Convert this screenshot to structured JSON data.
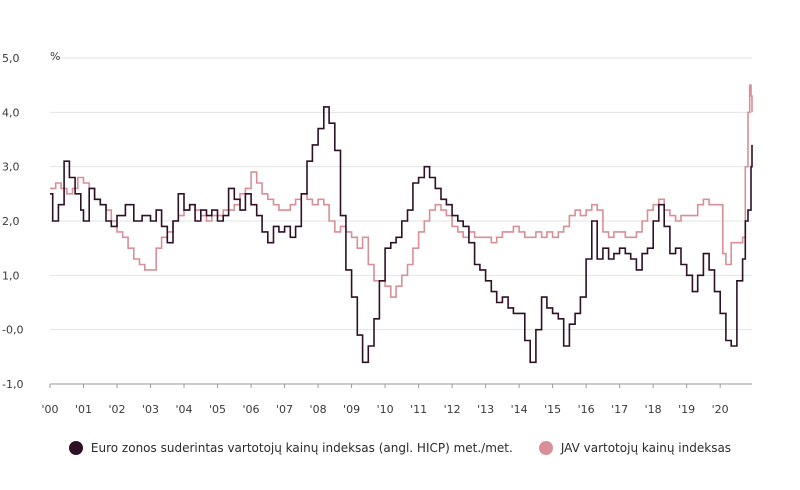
{
  "chart_data": {
    "type": "line",
    "title": "",
    "xlabel": "",
    "ylabel": "%",
    "ylim": [
      -1.0,
      5.0
    ],
    "xlim": [
      2000.0,
      2020.95
    ],
    "grid": "horizontal",
    "legend_position": "bottom",
    "y_ticks": [
      "-1,0",
      "-0,0",
      "1,0",
      "2,0",
      "3,0",
      "4,0",
      "5,0"
    ],
    "x_ticks": [
      "'00",
      "'01",
      "'02",
      "'03",
      "'04",
      "'05",
      "'06",
      "'07",
      "'08",
      "'09",
      "'10",
      "'11",
      "'12",
      "'13",
      "'14",
      "'15",
      "'16",
      "'17",
      "'18",
      "'19",
      "'20"
    ],
    "x_tick_years": [
      2000,
      2001,
      2002,
      2003,
      2004,
      2005,
      2006,
      2007,
      2008,
      2009,
      2010,
      2011,
      2012,
      2013,
      2014,
      2015,
      2016,
      2017,
      2018,
      2019,
      2020
    ],
    "series": [
      {
        "name": "Euro zonos suderintas vartotojų kainų indeksas (angl. HICP) met./met.",
        "color": "#2e1126",
        "points": [
          [
            2000.0,
            2.5
          ],
          [
            2000.08,
            2.0
          ],
          [
            2000.25,
            2.3
          ],
          [
            2000.42,
            3.1
          ],
          [
            2000.58,
            2.8
          ],
          [
            2000.75,
            2.5
          ],
          [
            2000.92,
            2.2
          ],
          [
            2001.0,
            2.0
          ],
          [
            2001.17,
            2.6
          ],
          [
            2001.33,
            2.4
          ],
          [
            2001.5,
            2.3
          ],
          [
            2001.67,
            2.0
          ],
          [
            2001.83,
            1.9
          ],
          [
            2002.0,
            2.1
          ],
          [
            2002.25,
            2.3
          ],
          [
            2002.5,
            2.0
          ],
          [
            2002.75,
            2.1
          ],
          [
            2003.0,
            2.0
          ],
          [
            2003.17,
            2.2
          ],
          [
            2003.33,
            1.9
          ],
          [
            2003.5,
            1.6
          ],
          [
            2003.67,
            2.0
          ],
          [
            2003.83,
            2.5
          ],
          [
            2004.0,
            2.2
          ],
          [
            2004.17,
            2.3
          ],
          [
            2004.33,
            2.0
          ],
          [
            2004.5,
            2.2
          ],
          [
            2004.67,
            2.1
          ],
          [
            2004.83,
            2.2
          ],
          [
            2005.0,
            2.0
          ],
          [
            2005.17,
            2.1
          ],
          [
            2005.33,
            2.6
          ],
          [
            2005.5,
            2.4
          ],
          [
            2005.67,
            2.2
          ],
          [
            2005.83,
            2.5
          ],
          [
            2006.0,
            2.3
          ],
          [
            2006.17,
            2.1
          ],
          [
            2006.33,
            1.8
          ],
          [
            2006.5,
            1.6
          ],
          [
            2006.67,
            1.9
          ],
          [
            2006.83,
            1.8
          ],
          [
            2007.0,
            1.9
          ],
          [
            2007.17,
            1.7
          ],
          [
            2007.33,
            1.9
          ],
          [
            2007.5,
            2.5
          ],
          [
            2007.67,
            3.1
          ],
          [
            2007.83,
            3.4
          ],
          [
            2008.0,
            3.7
          ],
          [
            2008.17,
            4.1
          ],
          [
            2008.33,
            3.8
          ],
          [
            2008.5,
            3.3
          ],
          [
            2008.67,
            2.1
          ],
          [
            2008.83,
            1.1
          ],
          [
            2009.0,
            0.6
          ],
          [
            2009.17,
            -0.1
          ],
          [
            2009.33,
            -0.6
          ],
          [
            2009.5,
            -0.3
          ],
          [
            2009.67,
            0.2
          ],
          [
            2009.83,
            0.9
          ],
          [
            2010.0,
            1.5
          ],
          [
            2010.17,
            1.6
          ],
          [
            2010.33,
            1.7
          ],
          [
            2010.5,
            2.0
          ],
          [
            2010.67,
            2.2
          ],
          [
            2010.83,
            2.7
          ],
          [
            2011.0,
            2.8
          ],
          [
            2011.17,
            3.0
          ],
          [
            2011.33,
            2.8
          ],
          [
            2011.5,
            2.6
          ],
          [
            2011.67,
            2.4
          ],
          [
            2011.83,
            2.3
          ],
          [
            2012.0,
            2.1
          ],
          [
            2012.17,
            2.0
          ],
          [
            2012.33,
            1.9
          ],
          [
            2012.5,
            1.6
          ],
          [
            2012.67,
            1.2
          ],
          [
            2012.83,
            1.1
          ],
          [
            2013.0,
            0.9
          ],
          [
            2013.17,
            0.7
          ],
          [
            2013.33,
            0.5
          ],
          [
            2013.5,
            0.6
          ],
          [
            2013.67,
            0.4
          ],
          [
            2013.83,
            0.3
          ],
          [
            2014.0,
            0.3
          ],
          [
            2014.17,
            -0.2
          ],
          [
            2014.33,
            -0.6
          ],
          [
            2014.5,
            0.0
          ],
          [
            2014.67,
            0.6
          ],
          [
            2014.83,
            0.4
          ],
          [
            2015.0,
            0.3
          ],
          [
            2015.17,
            0.2
          ],
          [
            2015.33,
            -0.3
          ],
          [
            2015.5,
            0.1
          ],
          [
            2015.67,
            0.3
          ],
          [
            2015.83,
            0.6
          ],
          [
            2016.0,
            1.3
          ],
          [
            2016.17,
            2.0
          ],
          [
            2016.33,
            1.3
          ],
          [
            2016.5,
            1.5
          ],
          [
            2016.67,
            1.3
          ],
          [
            2016.83,
            1.4
          ],
          [
            2017.0,
            1.5
          ],
          [
            2017.17,
            1.4
          ],
          [
            2017.33,
            1.3
          ],
          [
            2017.5,
            1.1
          ],
          [
            2017.67,
            1.4
          ],
          [
            2017.83,
            1.5
          ],
          [
            2018.0,
            2.0
          ],
          [
            2018.17,
            2.3
          ],
          [
            2018.33,
            1.9
          ],
          [
            2018.5,
            1.4
          ],
          [
            2018.67,
            1.5
          ],
          [
            2018.83,
            1.2
          ],
          [
            2019.0,
            1.0
          ],
          [
            2019.17,
            0.7
          ],
          [
            2019.33,
            1.0
          ],
          [
            2019.5,
            1.4
          ],
          [
            2019.67,
            1.1
          ],
          [
            2019.83,
            0.7
          ],
          [
            2020.0,
            0.3
          ],
          [
            2020.17,
            -0.2
          ],
          [
            2020.33,
            -0.3
          ],
          [
            2020.5,
            0.9
          ],
          [
            2020.67,
            1.3
          ],
          [
            2020.75,
            2.0
          ],
          [
            2020.83,
            2.2
          ],
          [
            2020.92,
            3.0
          ],
          [
            2020.95,
            3.4
          ]
        ]
      },
      {
        "name": "JAV vartotojų kainų indeksas",
        "color": "#d88f98",
        "points": [
          [
            2000.0,
            2.6
          ],
          [
            2000.17,
            2.7
          ],
          [
            2000.33,
            2.6
          ],
          [
            2000.5,
            2.5
          ],
          [
            2000.67,
            2.6
          ],
          [
            2000.83,
            2.8
          ],
          [
            2001.0,
            2.7
          ],
          [
            2001.17,
            2.6
          ],
          [
            2001.33,
            2.4
          ],
          [
            2001.5,
            2.3
          ],
          [
            2001.67,
            2.2
          ],
          [
            2001.83,
            2.0
          ],
          [
            2002.0,
            1.8
          ],
          [
            2002.17,
            1.7
          ],
          [
            2002.33,
            1.5
          ],
          [
            2002.5,
            1.3
          ],
          [
            2002.67,
            1.2
          ],
          [
            2002.83,
            1.1
          ],
          [
            2003.0,
            1.1
          ],
          [
            2003.17,
            1.5
          ],
          [
            2003.33,
            1.7
          ],
          [
            2003.5,
            1.8
          ],
          [
            2003.67,
            2.0
          ],
          [
            2003.83,
            2.1
          ],
          [
            2004.0,
            2.2
          ],
          [
            2004.17,
            2.3
          ],
          [
            2004.33,
            2.2
          ],
          [
            2004.5,
            2.1
          ],
          [
            2004.67,
            2.0
          ],
          [
            2004.83,
            2.1
          ],
          [
            2005.0,
            2.1
          ],
          [
            2005.17,
            2.2
          ],
          [
            2005.33,
            2.2
          ],
          [
            2005.5,
            2.3
          ],
          [
            2005.67,
            2.5
          ],
          [
            2005.83,
            2.6
          ],
          [
            2006.0,
            2.9
          ],
          [
            2006.17,
            2.7
          ],
          [
            2006.33,
            2.5
          ],
          [
            2006.5,
            2.4
          ],
          [
            2006.67,
            2.3
          ],
          [
            2006.83,
            2.2
          ],
          [
            2007.0,
            2.2
          ],
          [
            2007.17,
            2.3
          ],
          [
            2007.33,
            2.4
          ],
          [
            2007.5,
            2.5
          ],
          [
            2007.67,
            2.4
          ],
          [
            2007.83,
            2.3
          ],
          [
            2008.0,
            2.4
          ],
          [
            2008.17,
            2.3
          ],
          [
            2008.33,
            2.0
          ],
          [
            2008.5,
            1.8
          ],
          [
            2008.67,
            1.9
          ],
          [
            2008.83,
            1.8
          ],
          [
            2009.0,
            1.7
          ],
          [
            2009.17,
            1.5
          ],
          [
            2009.33,
            1.7
          ],
          [
            2009.5,
            1.2
          ],
          [
            2009.67,
            0.9
          ],
          [
            2009.83,
            0.9
          ],
          [
            2010.0,
            0.8
          ],
          [
            2010.17,
            0.6
          ],
          [
            2010.33,
            0.8
          ],
          [
            2010.5,
            1.0
          ],
          [
            2010.67,
            1.2
          ],
          [
            2010.83,
            1.5
          ],
          [
            2011.0,
            1.8
          ],
          [
            2011.17,
            2.0
          ],
          [
            2011.33,
            2.2
          ],
          [
            2011.5,
            2.3
          ],
          [
            2011.67,
            2.2
          ],
          [
            2011.83,
            2.1
          ],
          [
            2012.0,
            1.9
          ],
          [
            2012.17,
            1.8
          ],
          [
            2012.33,
            1.7
          ],
          [
            2012.5,
            1.8
          ],
          [
            2012.67,
            1.7
          ],
          [
            2012.83,
            1.7
          ],
          [
            2013.0,
            1.7
          ],
          [
            2013.17,
            1.6
          ],
          [
            2013.33,
            1.7
          ],
          [
            2013.5,
            1.8
          ],
          [
            2013.67,
            1.8
          ],
          [
            2013.83,
            1.9
          ],
          [
            2014.0,
            1.8
          ],
          [
            2014.17,
            1.7
          ],
          [
            2014.33,
            1.7
          ],
          [
            2014.5,
            1.8
          ],
          [
            2014.67,
            1.7
          ],
          [
            2014.83,
            1.8
          ],
          [
            2015.0,
            1.7
          ],
          [
            2015.17,
            1.8
          ],
          [
            2015.33,
            1.9
          ],
          [
            2015.5,
            2.1
          ],
          [
            2015.67,
            2.2
          ],
          [
            2015.83,
            2.1
          ],
          [
            2016.0,
            2.2
          ],
          [
            2016.17,
            2.3
          ],
          [
            2016.33,
            2.2
          ],
          [
            2016.5,
            1.8
          ],
          [
            2016.67,
            1.7
          ],
          [
            2016.83,
            1.8
          ],
          [
            2017.0,
            1.8
          ],
          [
            2017.17,
            1.7
          ],
          [
            2017.33,
            1.7
          ],
          [
            2017.5,
            1.8
          ],
          [
            2017.67,
            2.0
          ],
          [
            2017.83,
            2.2
          ],
          [
            2018.0,
            2.3
          ],
          [
            2018.17,
            2.4
          ],
          [
            2018.33,
            2.2
          ],
          [
            2018.5,
            2.1
          ],
          [
            2018.67,
            2.0
          ],
          [
            2018.83,
            2.1
          ],
          [
            2019.0,
            2.1
          ],
          [
            2019.17,
            2.1
          ],
          [
            2019.33,
            2.3
          ],
          [
            2019.5,
            2.4
          ],
          [
            2019.67,
            2.3
          ],
          [
            2019.83,
            2.3
          ],
          [
            2020.0,
            2.3
          ],
          [
            2020.08,
            1.4
          ],
          [
            2020.17,
            1.2
          ],
          [
            2020.33,
            1.6
          ],
          [
            2020.5,
            1.6
          ],
          [
            2020.67,
            1.7
          ],
          [
            2020.75,
            3.0
          ],
          [
            2020.83,
            4.0
          ],
          [
            2020.88,
            4.5
          ],
          [
            2020.92,
            4.3
          ],
          [
            2020.95,
            4.0
          ]
        ]
      }
    ]
  },
  "legend": {
    "items": [
      {
        "label": "Euro zonos suderintas vartotojų kainų indeksas (angl. HICP) met./met.",
        "color": "#2e1126"
      },
      {
        "label": "JAV vartotojų kainų indeksas",
        "color": "#d88f98"
      }
    ]
  }
}
